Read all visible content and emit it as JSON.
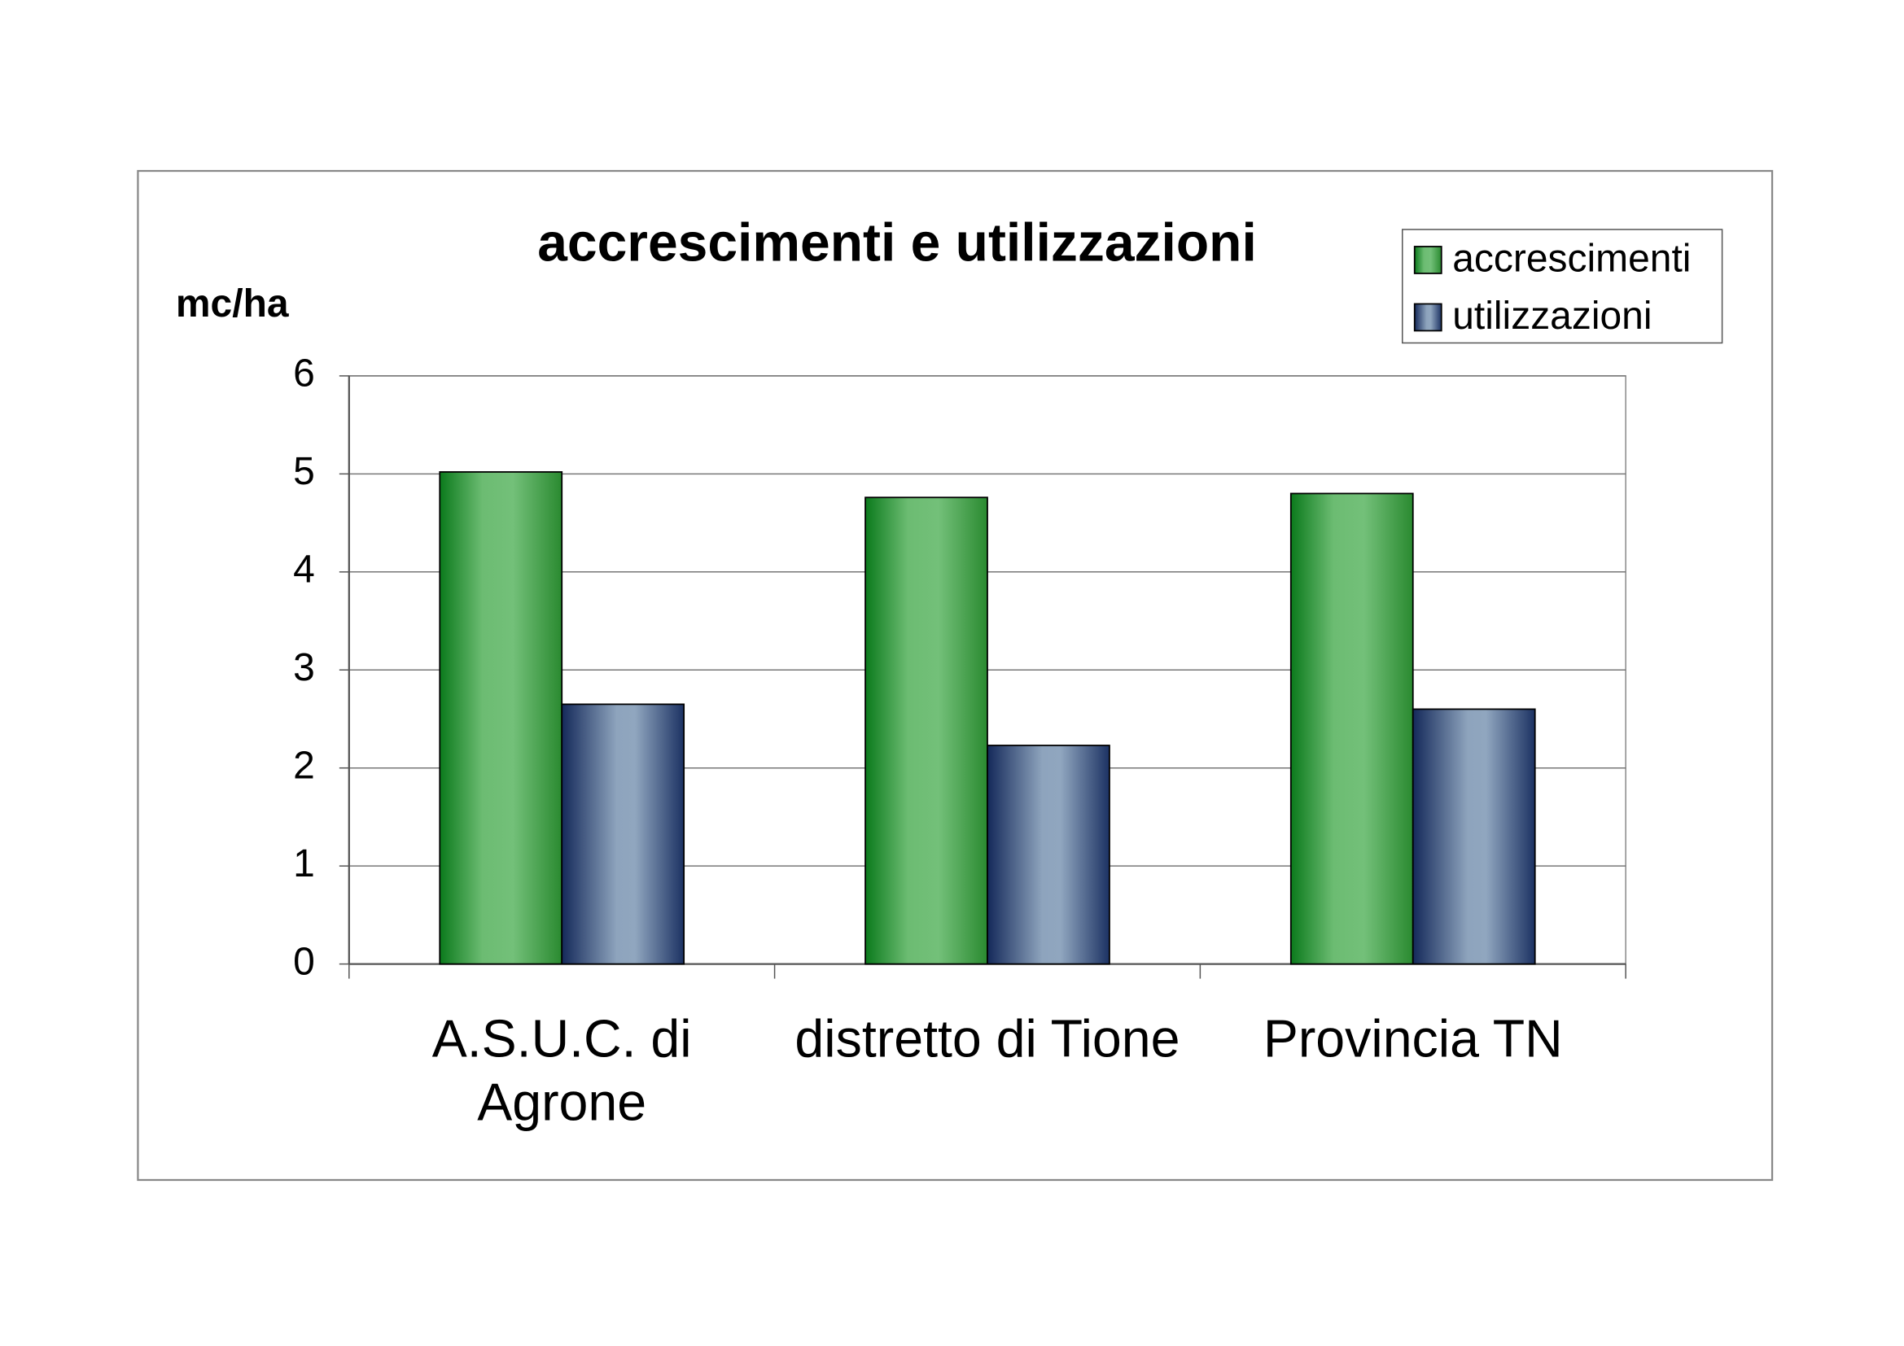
{
  "chart_data": {
    "type": "bar",
    "title": "accrescimenti e utilizzazioni",
    "y_label": "mc/ha",
    "categories": [
      "A.S.U.C. di Agrone",
      "distretto di Tione",
      "Provincia TN"
    ],
    "series": [
      {
        "name": "accrescimenti",
        "color": "#2e9a3a",
        "values": [
          5.02,
          4.76,
          4.8
        ]
      },
      {
        "name": "utilizzazioni",
        "color": "#3a5480",
        "values": [
          2.65,
          2.23,
          2.6
        ]
      }
    ],
    "ylim": [
      0,
      6
    ],
    "yticks": [
      0,
      1,
      2,
      3,
      4,
      5,
      6
    ],
    "grid": true,
    "legend": "top-right"
  }
}
